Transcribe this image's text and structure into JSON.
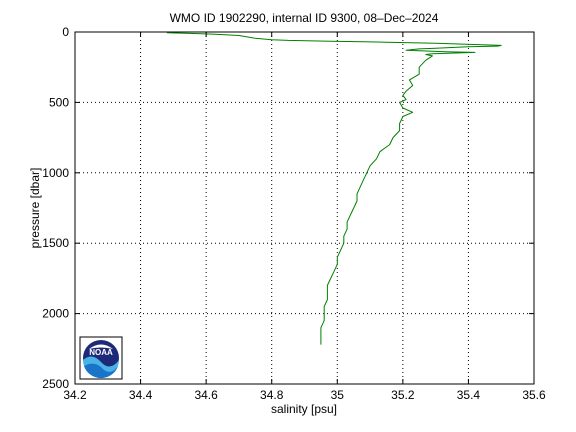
{
  "chart_data": {
    "type": "line",
    "title": "WMO ID 1902290, internal ID 9300, 08–Dec–2024",
    "xlabel": "salinity [psu]",
    "ylabel": "pressure [dbar]",
    "xlim": [
      34.2,
      35.6
    ],
    "ylim": [
      0,
      2500
    ],
    "y_reversed": true,
    "grid": true,
    "x_ticks": [
      34.2,
      34.4,
      34.6,
      34.8,
      35,
      35.2,
      35.4,
      35.6
    ],
    "x_tick_labels": [
      "34.2",
      "34.4",
      "34.6",
      "34.8",
      "35",
      "35.2",
      "35.4",
      "35.6"
    ],
    "y_ticks": [
      0,
      500,
      1000,
      1500,
      2000,
      2500
    ],
    "y_tick_labels": [
      "0",
      "500",
      "1000",
      "1500",
      "2000",
      "2500"
    ],
    "series": [
      {
        "color": "#007f00",
        "points": [
          [
            34.48,
            5
          ],
          [
            34.55,
            10
          ],
          [
            34.62,
            15
          ],
          [
            34.7,
            25
          ],
          [
            34.75,
            45
          ],
          [
            34.8,
            55
          ],
          [
            34.85,
            60
          ],
          [
            34.98,
            65
          ],
          [
            35.1,
            70
          ],
          [
            35.3,
            80
          ],
          [
            35.5,
            95
          ],
          [
            35.49,
            100
          ],
          [
            35.4,
            105
          ],
          [
            35.3,
            115
          ],
          [
            35.25,
            120
          ],
          [
            35.21,
            130
          ],
          [
            35.33,
            140
          ],
          [
            35.42,
            145
          ],
          [
            35.35,
            150
          ],
          [
            35.29,
            155
          ],
          [
            35.27,
            160
          ],
          [
            35.29,
            170
          ],
          [
            35.27,
            200
          ],
          [
            35.25,
            250
          ],
          [
            35.25,
            300
          ],
          [
            35.22,
            340
          ],
          [
            35.23,
            380
          ],
          [
            35.21,
            420
          ],
          [
            35.2,
            450
          ],
          [
            35.21,
            480
          ],
          [
            35.19,
            500
          ],
          [
            35.2,
            540
          ],
          [
            35.23,
            570
          ],
          [
            35.2,
            600
          ],
          [
            35.19,
            650
          ],
          [
            35.19,
            700
          ],
          [
            35.17,
            750
          ],
          [
            35.16,
            800
          ],
          [
            35.13,
            850
          ],
          [
            35.12,
            900
          ],
          [
            35.1,
            950
          ],
          [
            35.09,
            1000
          ],
          [
            35.08,
            1050
          ],
          [
            35.07,
            1100
          ],
          [
            35.06,
            1150
          ],
          [
            35.06,
            1200
          ],
          [
            35.05,
            1250
          ],
          [
            35.04,
            1300
          ],
          [
            35.03,
            1350
          ],
          [
            35.03,
            1400
          ],
          [
            35.02,
            1450
          ],
          [
            35.02,
            1500
          ],
          [
            35.01,
            1550
          ],
          [
            35.0,
            1600
          ],
          [
            35.0,
            1650
          ],
          [
            34.99,
            1700
          ],
          [
            34.98,
            1750
          ],
          [
            34.97,
            1800
          ],
          [
            34.97,
            1850
          ],
          [
            34.97,
            1900
          ],
          [
            34.96,
            1950
          ],
          [
            34.96,
            2000
          ],
          [
            34.96,
            2050
          ],
          [
            34.95,
            2100
          ],
          [
            34.95,
            2150
          ],
          [
            34.95,
            2200
          ],
          [
            34.95,
            2220
          ]
        ]
      }
    ]
  },
  "logo": {
    "text": "NOAA",
    "colors": {
      "sky": "#1e2a78",
      "wave_light": "#49b3e8",
      "wave_dark": "#1a74c8"
    }
  }
}
